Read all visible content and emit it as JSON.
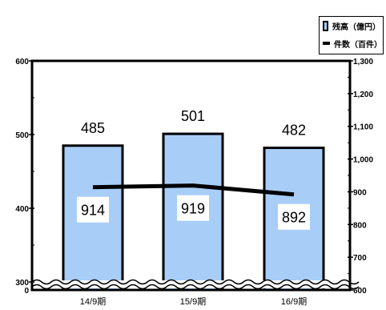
{
  "legend": {
    "bar_label": "残高（億円）",
    "line_label": "件数（百件）"
  },
  "colors": {
    "bar_fill": "#a8cef8",
    "bar_stroke": "#000000",
    "line": "#000000"
  },
  "chart_data": {
    "type": "bar",
    "categories": [
      "14/9期",
      "15/9期",
      "16/9期"
    ],
    "series": [
      {
        "name": "残高（億円）",
        "type": "bar",
        "axis": "left",
        "values": [
          485,
          501,
          482
        ]
      },
      {
        "name": "件数（百件）",
        "type": "line",
        "axis": "right",
        "values": [
          914,
          919,
          892
        ]
      }
    ],
    "left_axis": {
      "ticks_labeled": [
        "600",
        "500",
        "400",
        "300",
        "0"
      ],
      "ylim": [
        300,
        600
      ],
      "broken": true
    },
    "right_axis": {
      "ticks_labeled": [
        "1,300",
        "1,200",
        "1,100",
        "1,000",
        "900",
        "800",
        "700",
        "600"
      ],
      "ylim": [
        600,
        1300
      ]
    },
    "data_labels": {
      "bar": [
        "485",
        "501",
        "482"
      ],
      "line": [
        "914",
        "919",
        "892"
      ]
    },
    "grid": false,
    "legend_position": "top-right"
  }
}
